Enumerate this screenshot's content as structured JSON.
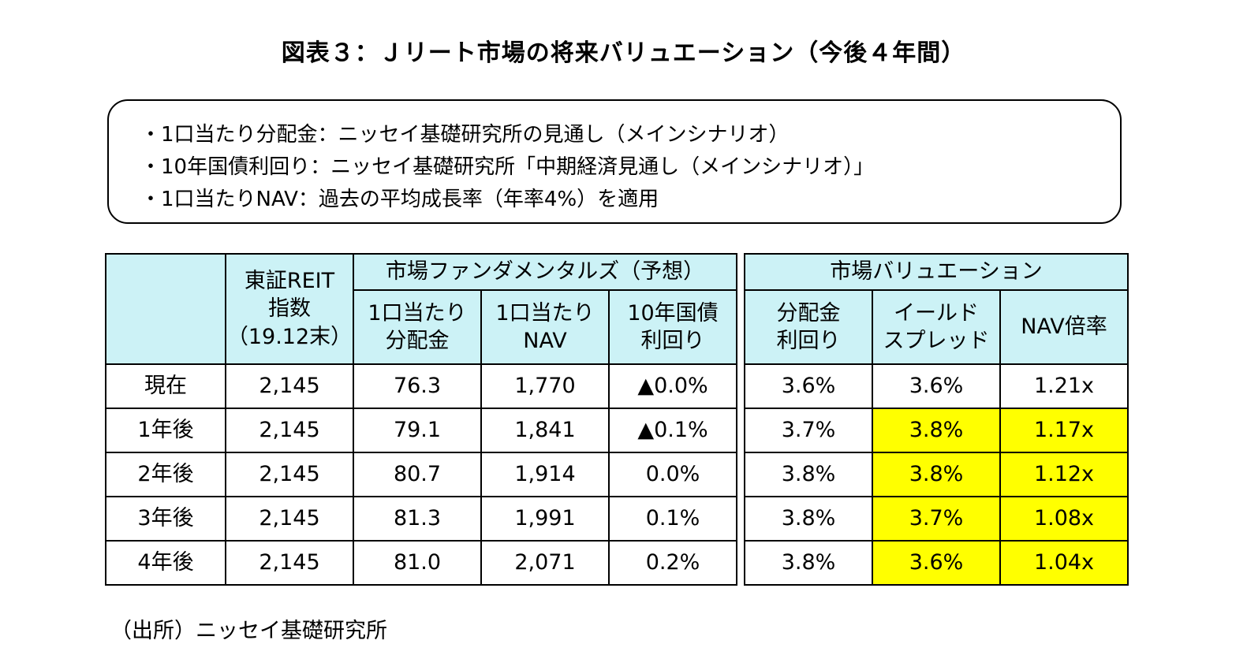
{
  "title": "図表３：Ｊリート市場の将来バリュエーション（今後４年間）",
  "notes": [
    "・1口当たり分配金：ニッセイ基礎研究所の見通し（メインシナリオ）",
    "・10年国債利回り：ニッセイ基礎研究所「中期経済見通し（メインシナリオ）」",
    "・1口当たりNAV：過去の平均成長率（年率4%）を適用"
  ],
  "fundamentals_table": {
    "group_header": "市場ファンダメンタルズ（予想）",
    "index_header": "東証REIT\n指数\n（19.12末）",
    "sub_headers": [
      "1口当たり\n分配金",
      "1口当たり\nNAV",
      "10年国債\n利回り"
    ],
    "rows": [
      {
        "label": "現在",
        "index": "2,145",
        "dividend": "76.3",
        "nav": "1,770",
        "jgb": "▲0.0%"
      },
      {
        "label": "1年後",
        "index": "2,145",
        "dividend": "79.1",
        "nav": "1,841",
        "jgb": "▲0.1%"
      },
      {
        "label": "2年後",
        "index": "2,145",
        "dividend": "80.7",
        "nav": "1,914",
        "jgb": "0.0%"
      },
      {
        "label": "3年後",
        "index": "2,145",
        "dividend": "81.3",
        "nav": "1,991",
        "jgb": "0.1%"
      },
      {
        "label": "4年後",
        "index": "2,145",
        "dividend": "81.0",
        "nav": "2,071",
        "jgb": "0.2%"
      }
    ]
  },
  "valuation_table": {
    "group_header": "市場バリュエーション",
    "sub_headers": [
      "分配金\n利回り",
      "イールド\nスプレッド",
      "NAV倍率"
    ],
    "rows": [
      {
        "yield": "3.6%",
        "spread": "3.6%",
        "nav_ratio": "1.21x"
      },
      {
        "yield": "3.7%",
        "spread": "3.8%",
        "nav_ratio": "1.17x"
      },
      {
        "yield": "3.8%",
        "spread": "3.8%",
        "nav_ratio": "1.12x"
      },
      {
        "yield": "3.8%",
        "spread": "3.7%",
        "nav_ratio": "1.08x"
      },
      {
        "yield": "3.8%",
        "spread": "3.6%",
        "nav_ratio": "1.04x"
      }
    ],
    "highlight_color": "#ffff00"
  },
  "header_color": "#ccf2f6",
  "source": "（出所）ニッセイ基礎研究所",
  "chart_data": {
    "type": "table",
    "title": "図表３：Ｊリート市場の将来バリュエーション（今後４年間）",
    "columns": [
      "東証REIT指数（19.12末）",
      "1口当たり分配金",
      "1口当たりNAV",
      "10年国債利回り",
      "分配金利回り",
      "イールドスプレッド",
      "NAV倍率"
    ],
    "row_labels": [
      "現在",
      "1年後",
      "2年後",
      "3年後",
      "4年後"
    ],
    "values": [
      [
        "2,145",
        "76.3",
        "1,770",
        "▲0.0%",
        "3.6%",
        "3.6%",
        "1.21x"
      ],
      [
        "2,145",
        "79.1",
        "1,841",
        "▲0.1%",
        "3.7%",
        "3.8%",
        "1.17x"
      ],
      [
        "2,145",
        "80.7",
        "1,914",
        "0.0%",
        "3.8%",
        "3.8%",
        "1.12x"
      ],
      [
        "2,145",
        "81.3",
        "1,991",
        "0.1%",
        "3.8%",
        "3.7%",
        "1.08x"
      ],
      [
        "2,145",
        "81.0",
        "2,071",
        "0.2%",
        "3.8%",
        "3.6%",
        "1.04x"
      ]
    ]
  }
}
